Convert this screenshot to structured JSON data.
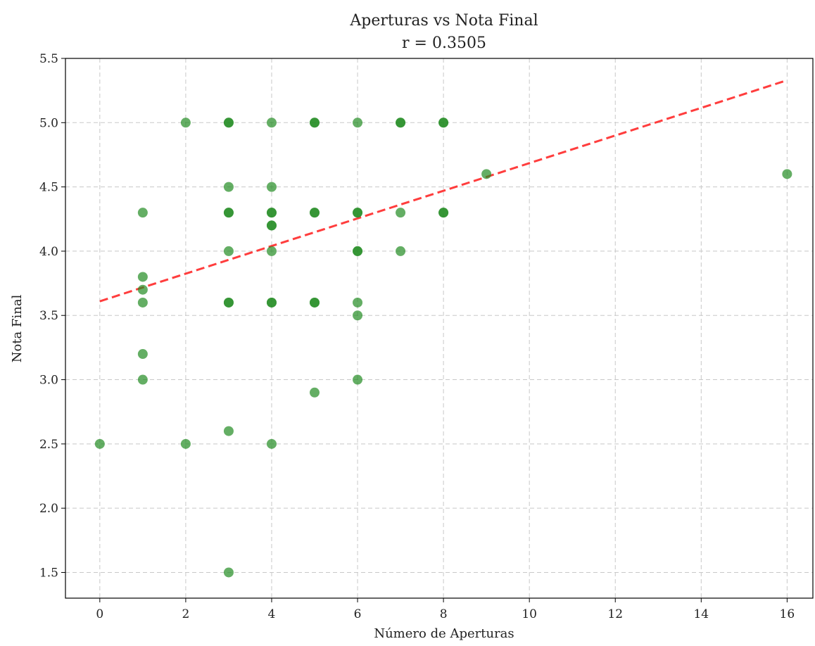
{
  "chart_data": {
    "type": "scatter",
    "title": "Aperturas vs Nota Final",
    "subtitle": "r = 0.3505",
    "xlabel": "Número de Aperturas",
    "ylabel": "Nota Final",
    "xlim": [
      -0.8,
      16.6
    ],
    "ylim": [
      1.3,
      5.5
    ],
    "xticks": [
      0,
      2,
      4,
      6,
      8,
      10,
      12,
      14,
      16
    ],
    "yticks": [
      1.5,
      2.0,
      2.5,
      3.0,
      3.5,
      4.0,
      4.5,
      5.0,
      5.5
    ],
    "xtick_labels": [
      "0",
      "2",
      "4",
      "6",
      "8",
      "10",
      "12",
      "14",
      "16"
    ],
    "ytick_labels": [
      "1.5",
      "2.0",
      "2.5",
      "3.0",
      "3.5",
      "4.0",
      "4.5",
      "5.0",
      "5.5"
    ],
    "grid": true,
    "point_color": "#228B22",
    "trend_color": "#FF3333",
    "points": [
      [
        0,
        2.5
      ],
      [
        1,
        4.3
      ],
      [
        1,
        3.8
      ],
      [
        1,
        3.7
      ],
      [
        1,
        3.6
      ],
      [
        1,
        3.2
      ],
      [
        1,
        3.0
      ],
      [
        2,
        5.0
      ],
      [
        2,
        2.5
      ],
      [
        3,
        5.0
      ],
      [
        3,
        5.0
      ],
      [
        3,
        4.5
      ],
      [
        3,
        4.3
      ],
      [
        3,
        4.3
      ],
      [
        3,
        4.0
      ],
      [
        3,
        3.6
      ],
      [
        3,
        3.6
      ],
      [
        3,
        2.6
      ],
      [
        3,
        1.5
      ],
      [
        4,
        5.0
      ],
      [
        4,
        4.5
      ],
      [
        4,
        4.3
      ],
      [
        4,
        4.3
      ],
      [
        4,
        4.2
      ],
      [
        4,
        4.2
      ],
      [
        4,
        4.0
      ],
      [
        4,
        3.6
      ],
      [
        4,
        3.6
      ],
      [
        4,
        2.5
      ],
      [
        5,
        5.0
      ],
      [
        5,
        5.0
      ],
      [
        5,
        4.3
      ],
      [
        5,
        4.3
      ],
      [
        5,
        3.6
      ],
      [
        5,
        3.6
      ],
      [
        5,
        2.9
      ],
      [
        6,
        5.0
      ],
      [
        6,
        4.3
      ],
      [
        6,
        4.3
      ],
      [
        6,
        4.0
      ],
      [
        6,
        4.0
      ],
      [
        6,
        3.6
      ],
      [
        6,
        3.5
      ],
      [
        6,
        3.0
      ],
      [
        7,
        5.0
      ],
      [
        7,
        5.0
      ],
      [
        7,
        4.3
      ],
      [
        7,
        4.0
      ],
      [
        8,
        5.0
      ],
      [
        8,
        5.0
      ],
      [
        8,
        4.3
      ],
      [
        8,
        4.3
      ],
      [
        9,
        4.6
      ],
      [
        16,
        4.6
      ]
    ],
    "trend_line": {
      "style": "dashed",
      "x": [
        0,
        16
      ],
      "y": [
        3.61,
        5.33
      ]
    }
  }
}
